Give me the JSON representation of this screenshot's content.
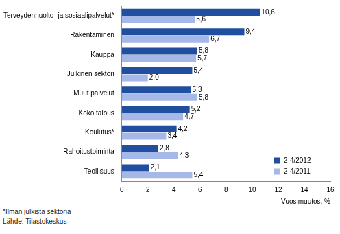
{
  "chart_data": {
    "type": "bar",
    "orientation": "horizontal",
    "categories": [
      "Terveydenhuolto- ja sosiaalipalvelut*",
      "Rakentaminen",
      "Kauppa",
      "Julkinen sektori",
      "Muut palvelut",
      "Koko talous",
      "Koulutus*",
      "Rahoitustoiminta",
      "Teollisuus"
    ],
    "series": [
      {
        "name": "2-4/2012",
        "color": "#1f4f9e",
        "values": [
          10.6,
          9.4,
          5.8,
          5.4,
          5.3,
          5.2,
          4.2,
          2.8,
          2.1
        ],
        "value_labels": [
          "10,6",
          "9,4",
          "5,8",
          "5,4",
          "5,3",
          "5,2",
          "4,2",
          "2,8",
          "2,1"
        ]
      },
      {
        "name": "2-4/2011",
        "color": "#a6b8e8",
        "values": [
          5.6,
          6.7,
          5.7,
          2.0,
          5.8,
          4.7,
          3.4,
          4.3,
          5.4
        ],
        "value_labels": [
          "5,6",
          "6,7",
          "5,7",
          "2,0",
          "5,8",
          "4,7",
          "3,4",
          "4,3",
          "5,4"
        ]
      }
    ],
    "x_label": "Vuosimuutos, %",
    "xlim": [
      0,
      16
    ],
    "xticks": [
      0,
      2,
      4,
      6,
      8,
      10,
      12,
      14,
      16
    ],
    "grid": false,
    "legend": "lower right",
    "data_labels": true,
    "annotations": [
      "*Ilman julkista sektoria",
      "Lähde: Tilastokeskus"
    ]
  }
}
